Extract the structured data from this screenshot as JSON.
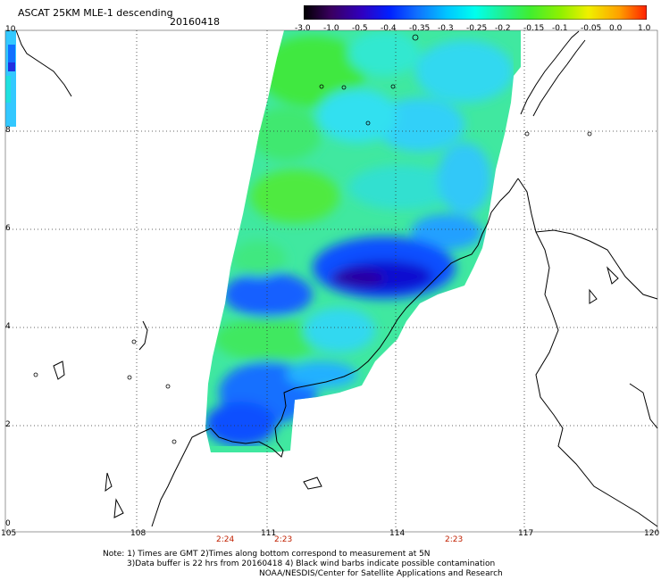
{
  "header": {
    "title": "ASCAT 25KM MLE-1 descending",
    "date": "20160418"
  },
  "colorbar": {
    "ticks": [
      "-3.0",
      "-1.0",
      "-0.5",
      "-0.4",
      "-0.35",
      "-0.3",
      "-0.25",
      "-0.2",
      "-0.15",
      "-0.1",
      "-0.05",
      "0.0",
      "1.0"
    ]
  },
  "axes": {
    "x_ticks": [
      "105",
      "108",
      "111",
      "114",
      "117",
      "120"
    ],
    "y_ticks": [
      "0",
      "2",
      "4",
      "6",
      "8",
      "10"
    ]
  },
  "time_labels": [
    "2:24",
    "2:23",
    "2:23"
  ],
  "notes": {
    "line1": "Note: 1) Times are GMT 2)Times along bottom correspond to measurement at 5N",
    "line2": "3)Data buffer is 22 hrs from 20160418 4) Black wind barbs indicate possible contamination",
    "line3": "NOAA/NESDIS/Center for Satellite Applications and Research"
  },
  "chart_data": {
    "type": "heatmap",
    "title": "ASCAT 25KM MLE-1 descending",
    "xlim": [
      105,
      120
    ],
    "ylim": [
      0,
      10
    ],
    "x_ticks": [
      105,
      108,
      111,
      114,
      117,
      120
    ],
    "y_ticks": [
      0,
      2,
      4,
      6,
      8,
      10
    ],
    "grid": true,
    "colorscale_ticks": [
      -3.0,
      -1.0,
      -0.5,
      -0.4,
      -0.35,
      -0.3,
      -0.25,
      -0.2,
      -0.15,
      -0.1,
      -0.05,
      0.0,
      1.0
    ]
  },
  "colors": {
    "green": "#33e633",
    "light_green": "#66f066",
    "cyan": "#00e6e6",
    "light_blue": "#22b8ff",
    "blue": "#1060ff",
    "deep_blue": "#0000d8",
    "purple": "#2a00b0",
    "dark_red_time": "#c02000"
  }
}
